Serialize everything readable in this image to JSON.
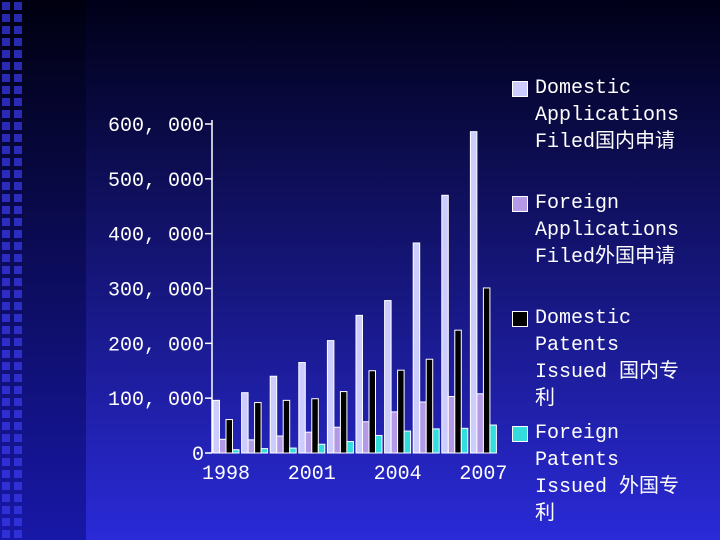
{
  "chart_data": {
    "type": "bar",
    "categories": [
      "1998",
      null,
      null,
      "2001",
      null,
      null,
      "2004",
      null,
      null,
      "2007"
    ],
    "series": [
      {
        "name": "Domestic Applications Filed国内申请",
        "color": "#ccccff",
        "values": [
          96000,
          110000,
          140000,
          165000,
          205000,
          251000,
          278000,
          383000,
          470000,
          586000
        ]
      },
      {
        "name": "Foreign Applications Filed外国申请",
        "color": "#b399e6",
        "values": [
          25000,
          24000,
          31000,
          38000,
          47000,
          57000,
          75000,
          93000,
          103000,
          108000
        ]
      },
      {
        "name": "Domestic Patents Issued 国内专利",
        "color": "#000000",
        "values": [
          61000,
          92000,
          96000,
          99000,
          112000,
          150000,
          151000,
          171000,
          224000,
          301000
        ]
      },
      {
        "name": "Foreign Patents Issued 外国专利",
        "color": "#33dddd",
        "values": [
          6000,
          8000,
          9000,
          16000,
          21000,
          32000,
          40000,
          44000,
          45000,
          51000
        ]
      }
    ],
    "ylim": [
      0,
      600000
    ],
    "yticks": [
      0,
      {
        "value": 100000,
        "label": "100, 000"
      },
      {
        "value": 200000,
        "label": "200, 000"
      },
      {
        "value": 300000,
        "label": "300, 000"
      },
      {
        "value": 400000,
        "label": "400, 000"
      },
      {
        "value": 500000,
        "label": "500, 000"
      },
      {
        "value": 600000,
        "label": "600, 000"
      }
    ],
    "legend": "right"
  }
}
